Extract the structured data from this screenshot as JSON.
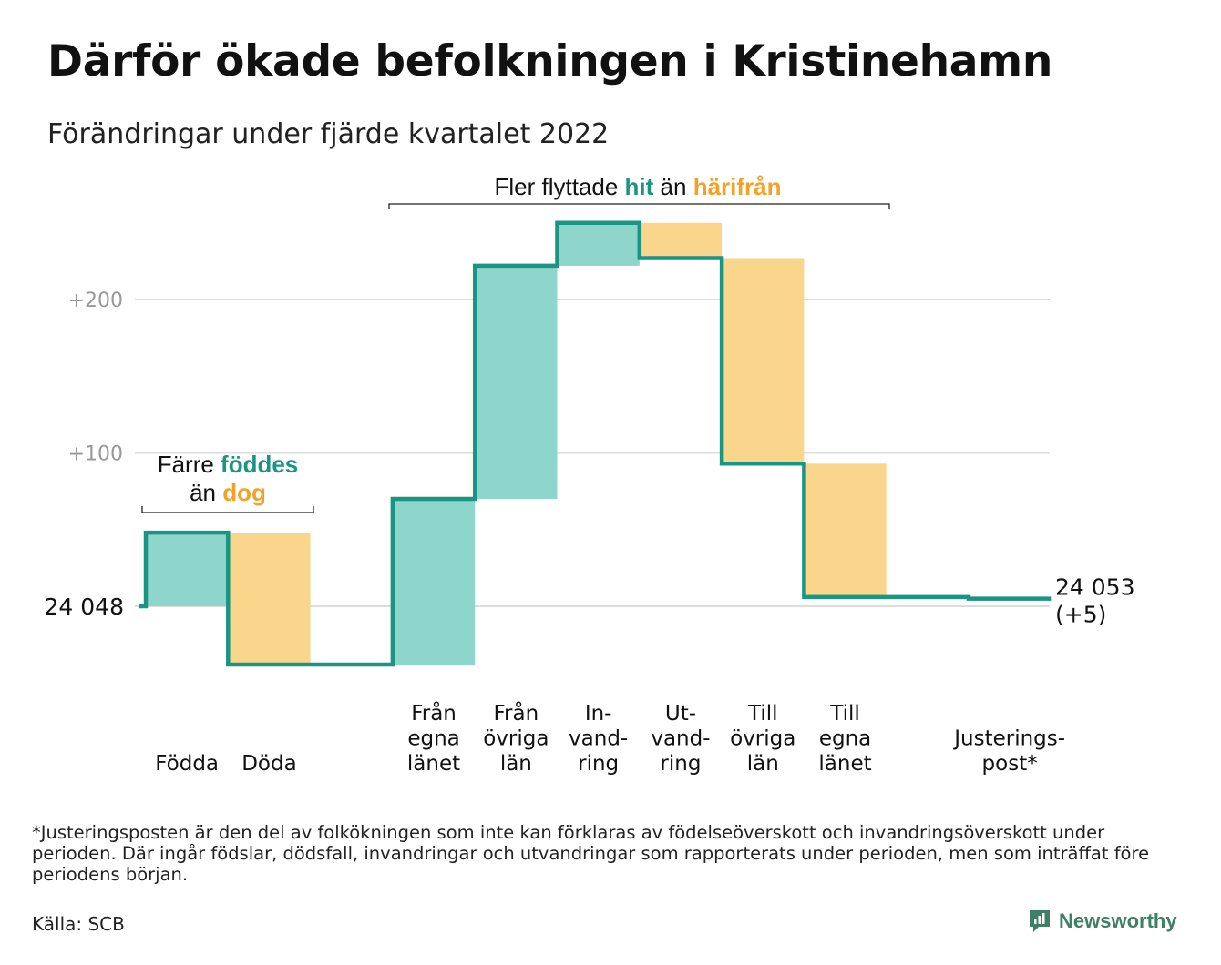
{
  "title": "Därför ökade befolkningen i Kristinehamn",
  "subtitle": "Förändringar under fjärde kvartalet 2022",
  "colors": {
    "increase": "#8ed5cc",
    "decrease": "#fad68c",
    "line": "#1a9483",
    "teal_text": "#1a9483",
    "orange_text": "#f2a227",
    "grid": "#dddddd",
    "tick": "#999999"
  },
  "annotation_births": {
    "line1_prefix": "Färre ",
    "line1_highlight": "föddes",
    "line2_prefix": "än ",
    "line2_highlight": "dog"
  },
  "annotation_migration": {
    "prefix": "Fler flyttade ",
    "highlight1": "hit",
    "middle": " än ",
    "highlight2": "härifrån"
  },
  "start_label": "24 048",
  "end_label": {
    "value": "24 053",
    "change": "(+5)"
  },
  "chart_data": {
    "type": "waterfall",
    "base": 24048,
    "y_ticks": [
      "+100",
      "+200"
    ],
    "y_tick_values": [
      100,
      200
    ],
    "ylim": [
      -50,
      260
    ],
    "grid": true,
    "steps": [
      {
        "label": [
          "Födda"
        ],
        "from": 0,
        "to": 48,
        "kind": "increase"
      },
      {
        "label": [
          "Döda"
        ],
        "from": 48,
        "to": -38,
        "kind": "decrease"
      },
      {
        "label": [],
        "from": -38,
        "to": -38,
        "kind": "spacer"
      },
      {
        "label": [
          "Från",
          "egna",
          "länet"
        ],
        "from": -38,
        "to": 70,
        "kind": "increase"
      },
      {
        "label": [
          "Från",
          "övriga",
          "län"
        ],
        "from": 70,
        "to": 222,
        "kind": "increase"
      },
      {
        "label": [
          "In-",
          "vand-",
          "ring"
        ],
        "from": 222,
        "to": 250,
        "kind": "increase"
      },
      {
        "label": [
          "Ut-",
          "vand-",
          "ring"
        ],
        "from": 250,
        "to": 227,
        "kind": "decrease"
      },
      {
        "label": [
          "Till",
          "övriga",
          "län"
        ],
        "from": 227,
        "to": 93,
        "kind": "decrease"
      },
      {
        "label": [
          "Till",
          "egna",
          "länet"
        ],
        "from": 93,
        "to": 6,
        "kind": "decrease"
      },
      {
        "label": [],
        "from": 6,
        "to": 6,
        "kind": "spacer"
      },
      {
        "label": [
          "Justerings-",
          "post*"
        ],
        "from": 6,
        "to": 5,
        "kind": "adjustment"
      }
    ]
  },
  "footnote": "*Justeringsposten är den del av folkökningen som inte kan förklaras av födelseöverskott och invandringsöverskott under perioden. Där ingår födslar, dödsfall, invandringar och utvandringar som rapporterats under perioden, men som inträffat före periodens början.",
  "source": "Källa: SCB",
  "brand": {
    "name": "Newsworthy",
    "icon": "newsworthy-logo-icon"
  }
}
